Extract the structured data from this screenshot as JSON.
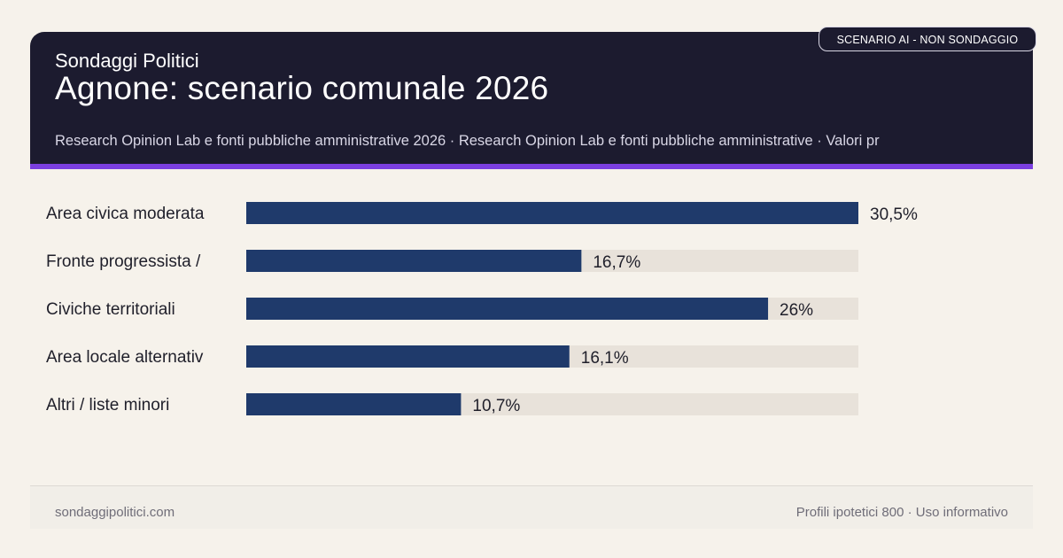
{
  "header": {
    "brand": "Sondaggi Politici",
    "title": "Agnone: scenario comunale 2026",
    "sources": "Research Opinion Lab e fonti pubbliche amministrative 2026 · Research Opinion Lab e fonti pubbliche amministrative · Valori pr",
    "badge": "SCENARIO AI - NON SONDAGGIO"
  },
  "footer": {
    "site": "sondaggipolitici.com",
    "note": "Profili ipotetici 800 · Uso informativo"
  },
  "colors": {
    "bar": "#1f3a6b",
    "track": "#e8e2da",
    "header_bg": "#1c1b2f",
    "accent": "#7b3fe0"
  },
  "chart_data": {
    "type": "bar",
    "orientation": "horizontal",
    "categories": [
      "Area civica moderata",
      "Fronte progressista /",
      "Civiche territoriali",
      "Area locale alternativ",
      "Altri / liste minori"
    ],
    "values": [
      30.5,
      16.7,
      26,
      16.1,
      10.7
    ],
    "value_labels": [
      "30,5%",
      "16,7%",
      "26%",
      "16,1%",
      "10,7%"
    ],
    "xlim": [
      0,
      30.5
    ]
  }
}
